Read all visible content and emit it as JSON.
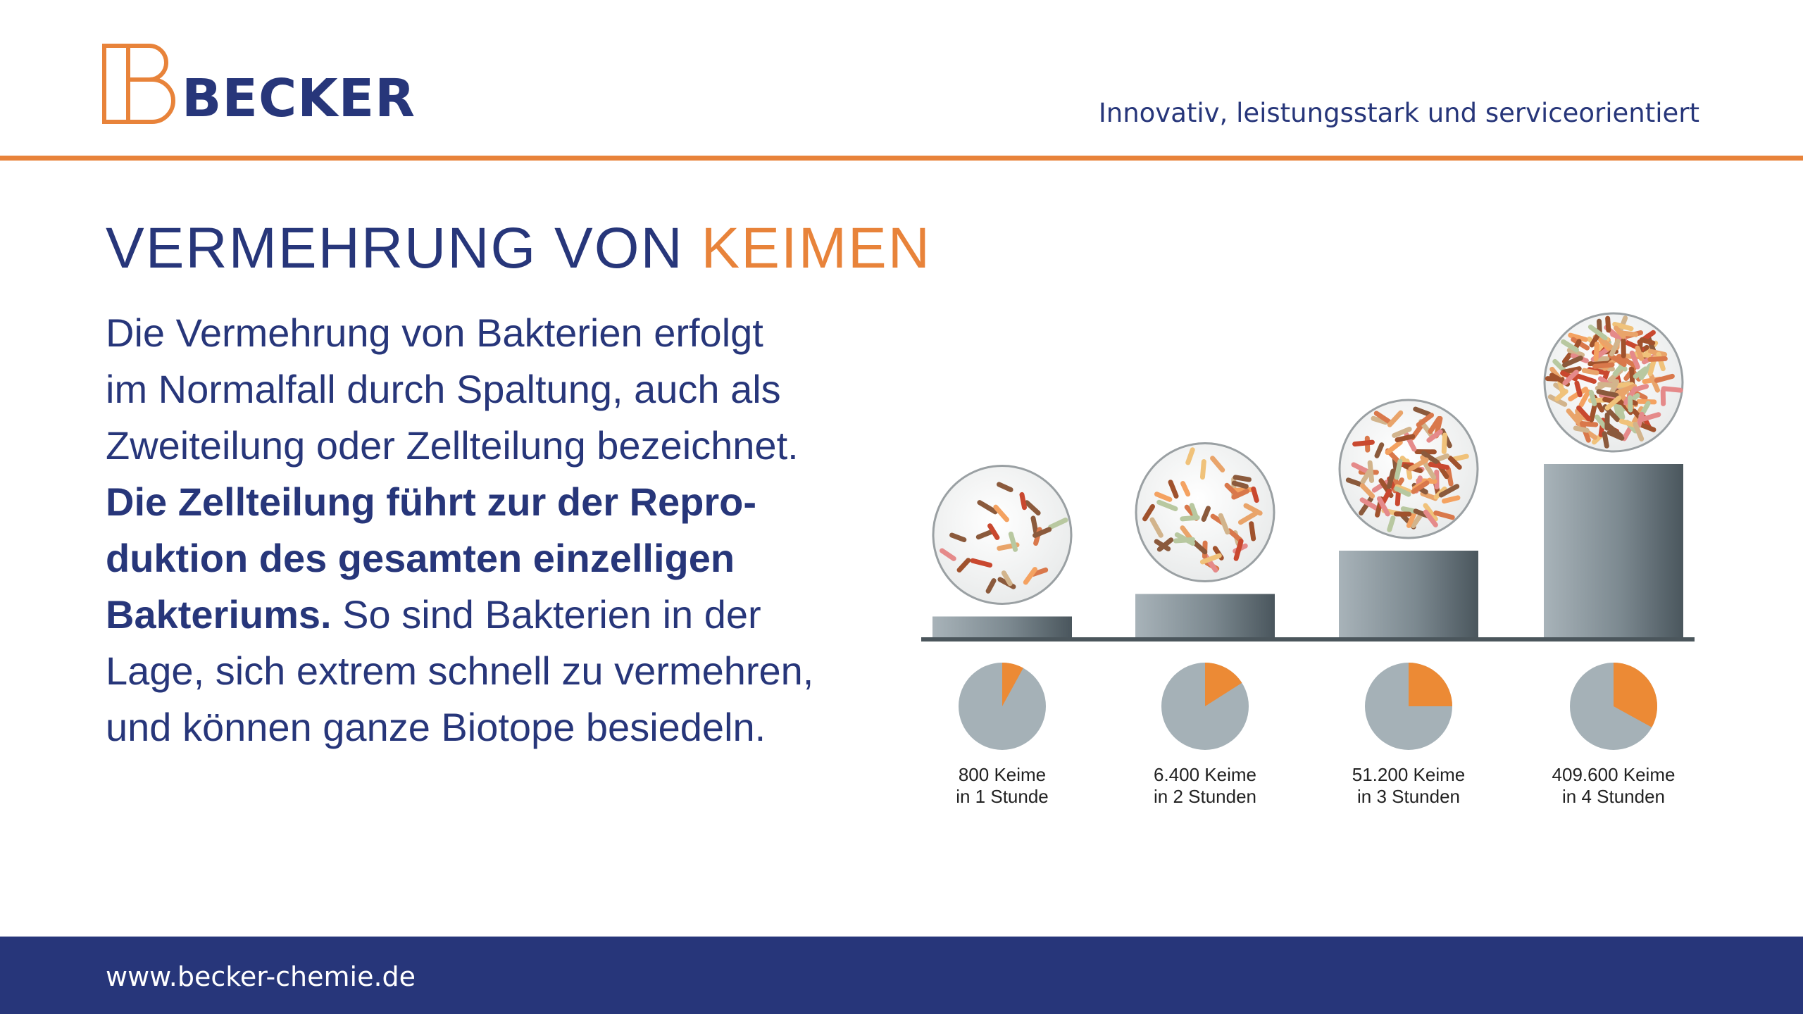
{
  "header": {
    "brand": "BECKER",
    "tagline": "Innovativ, leistungsstark und serviceorientiert",
    "colors": {
      "brand_blue": "#27367a",
      "accent_orange": "#e8833a"
    }
  },
  "slide": {
    "title_part1": "VERMEHRUNG VON",
    "title_part2": "KEIMEN",
    "body_1_line1": "Die Vermehrung von Bakterien erfolgt",
    "body_1_line2": "im Normalfall durch Spaltung, auch als",
    "body_1_line3": "Zweiteilung oder Zellteilung bezeichnet.",
    "body_bold_line1": "Die Zellteilung führt zur der Repro-",
    "body_bold_line2": "duktion des gesamten einzelligen",
    "body_bold_line3": "Bakteriums.",
    "body_2_line3": " So sind Bakterien in der",
    "body_2_line4": "Lage, sich extrem schnell zu vermehren,",
    "body_2_line5": "und können ganze Biotope besiedeln."
  },
  "infographic": {
    "icons": [
      "bacteria-petri-dish-icon",
      "pie-fraction-icon"
    ],
    "stages": [
      {
        "line1": "800 Keime",
        "line2": "in 1 Stunde",
        "pie_fraction": 0.08,
        "bar_level": 0.12
      },
      {
        "line1": "6.400 Keime",
        "line2": "in 2 Stunden",
        "pie_fraction": 0.16,
        "bar_level": 0.25
      },
      {
        "line1": "51.200 Keime",
        "line2": "in 3 Stunden",
        "pie_fraction": 0.25,
        "bar_level": 0.5
      },
      {
        "line1": "409.600 Keime",
        "line2": "in 4 Stunden",
        "pie_fraction": 0.33,
        "bar_level": 1.0
      }
    ]
  },
  "footer": {
    "url": "www.becker-chemie.de"
  }
}
